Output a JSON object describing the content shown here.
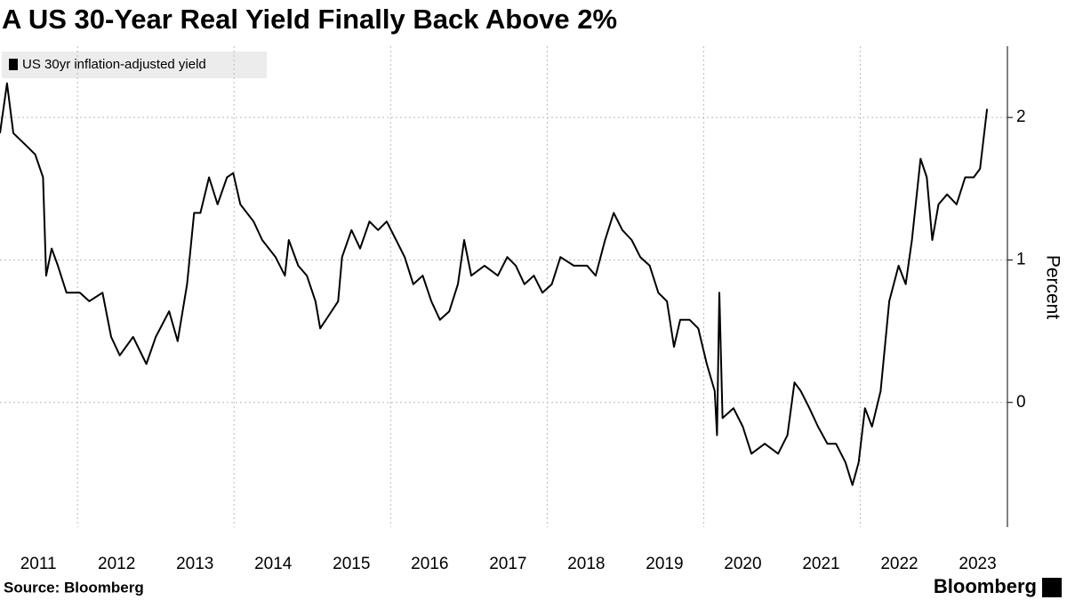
{
  "chart_data": {
    "type": "line",
    "title": "A US 30-Year Real Yield Finally Back Above 2%",
    "y_label": "Percent",
    "source": "Source: Bloomberg",
    "brand": "Bloomberg",
    "x": [
      2011.01,
      2011.1,
      2011.18,
      2011.35,
      2011.46,
      2011.56,
      2011.6,
      2011.67,
      2011.75,
      2011.86,
      2012.03,
      2012.15,
      2012.32,
      2012.43,
      2012.54,
      2012.71,
      2012.88,
      2013.0,
      2013.17,
      2013.28,
      2013.4,
      2013.49,
      2013.57,
      2013.68,
      2013.79,
      2013.91,
      2013.99,
      2014.08,
      2014.25,
      2014.36,
      2014.53,
      2014.65,
      2014.7,
      2014.82,
      2014.93,
      2015.04,
      2015.1,
      2015.21,
      2015.33,
      2015.38,
      2015.5,
      2015.61,
      2015.73,
      2015.84,
      2015.95,
      2016.07,
      2016.18,
      2016.29,
      2016.41,
      2016.52,
      2016.63,
      2016.75,
      2016.86,
      2016.94,
      2017.03,
      2017.2,
      2017.37,
      2017.49,
      2017.6,
      2017.71,
      2017.83,
      2017.94,
      2018.06,
      2018.17,
      2018.34,
      2018.51,
      2018.62,
      2018.74,
      2018.85,
      2018.96,
      2019.08,
      2019.19,
      2019.31,
      2019.42,
      2019.53,
      2019.62,
      2019.7,
      2019.82,
      2019.93,
      2020.04,
      2020.14,
      2020.17,
      2020.2,
      2020.24,
      2020.38,
      2020.5,
      2020.61,
      2020.78,
      2020.95,
      2021.07,
      2021.16,
      2021.24,
      2021.35,
      2021.46,
      2021.58,
      2021.69,
      2021.81,
      2021.9,
      2021.98,
      2022.06,
      2022.15,
      2022.26,
      2022.37,
      2022.49,
      2022.58,
      2022.66,
      2022.77,
      2022.85,
      2022.92,
      2023.0,
      2023.11,
      2023.23,
      2023.34,
      2023.45,
      2023.53,
      2023.62
    ],
    "series": [
      {
        "name": "US 30yr inflation-adjusted yield",
        "color": "#000000",
        "values": [
          1.89,
          2.24,
          1.89,
          1.8,
          1.74,
          1.58,
          0.89,
          1.08,
          0.96,
          0.77,
          0.77,
          0.71,
          0.77,
          0.46,
          0.33,
          0.46,
          0.27,
          0.46,
          0.64,
          0.43,
          0.83,
          1.33,
          1.33,
          1.58,
          1.39,
          1.58,
          1.61,
          1.39,
          1.27,
          1.14,
          1.02,
          0.89,
          1.14,
          0.96,
          0.89,
          0.71,
          0.52,
          0.61,
          0.71,
          1.02,
          1.21,
          1.08,
          1.27,
          1.21,
          1.27,
          1.14,
          1.02,
          0.83,
          0.89,
          0.71,
          0.58,
          0.64,
          0.83,
          1.14,
          0.89,
          0.96,
          0.89,
          1.02,
          0.96,
          0.83,
          0.89,
          0.77,
          0.83,
          1.02,
          0.96,
          0.96,
          0.89,
          1.14,
          1.33,
          1.21,
          1.14,
          1.02,
          0.96,
          0.77,
          0.71,
          0.39,
          0.58,
          0.58,
          0.52,
          0.27,
          0.08,
          -0.23,
          0.77,
          -0.11,
          -0.04,
          -0.17,
          -0.36,
          -0.29,
          -0.36,
          -0.23,
          0.14,
          0.08,
          -0.04,
          -0.17,
          -0.29,
          -0.29,
          -0.42,
          -0.58,
          -0.42,
          -0.04,
          -0.17,
          0.08,
          0.71,
          0.96,
          0.83,
          1.14,
          1.71,
          1.58,
          1.14,
          1.39,
          1.46,
          1.39,
          1.58,
          1.58,
          1.64,
          2.06
        ]
      }
    ],
    "xlim": [
      2011.01,
      2023.88
    ],
    "xticks": [
      {
        "value": 2011,
        "label": "2011"
      },
      {
        "value": 2012,
        "label": "2012"
      },
      {
        "value": 2013,
        "label": "2013"
      },
      {
        "value": 2014,
        "label": "2014"
      },
      {
        "value": 2015,
        "label": "2015"
      },
      {
        "value": 2016,
        "label": "2016"
      },
      {
        "value": 2017,
        "label": "2017"
      },
      {
        "value": 2018,
        "label": "2018"
      },
      {
        "value": 2019,
        "label": "2019"
      },
      {
        "value": 2020,
        "label": "2020"
      },
      {
        "value": 2021,
        "label": "2021"
      },
      {
        "value": 2022,
        "label": "2022"
      },
      {
        "value": 2023,
        "label": "2023"
      }
    ],
    "ylim": [
      -0.875,
      2.5
    ],
    "yticks": [
      0,
      1,
      2
    ],
    "grid": true
  }
}
